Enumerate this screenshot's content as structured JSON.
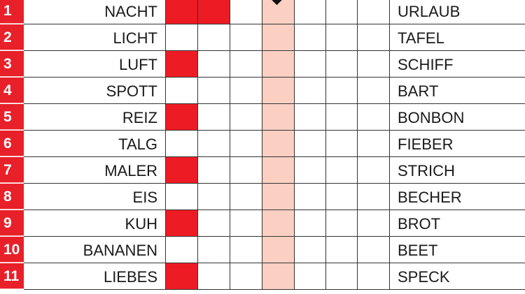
{
  "colors": {
    "accent": "#ed1c24",
    "highlight_column": "#fbd0c2"
  },
  "marker_icon": "diamond",
  "rows": [
    {
      "num": "1",
      "left": "NACHT",
      "right": "URLAUB",
      "filled": [
        1,
        2
      ]
    },
    {
      "num": "2",
      "left": "LICHT",
      "right": "TAFEL",
      "filled": []
    },
    {
      "num": "3",
      "left": "LUFT",
      "right": "SCHIFF",
      "filled": [
        1
      ]
    },
    {
      "num": "4",
      "left": "SPOTT",
      "right": "BART",
      "filled": []
    },
    {
      "num": "5",
      "left": "REIZ",
      "right": "BONBON",
      "filled": [
        1
      ]
    },
    {
      "num": "6",
      "left": "TALG",
      "right": "FIEBER",
      "filled": []
    },
    {
      "num": "7",
      "left": "MALER",
      "right": "STRICH",
      "filled": [
        1
      ]
    },
    {
      "num": "8",
      "left": "EIS",
      "right": "BECHER",
      "filled": []
    },
    {
      "num": "9",
      "left": "KUH",
      "right": "BROT",
      "filled": [
        1
      ]
    },
    {
      "num": "10",
      "left": "BANANEN",
      "right": "BEET",
      "filled": []
    },
    {
      "num": "11",
      "left": "LIEBES",
      "right": "SPECK",
      "filled": [
        1
      ]
    }
  ]
}
